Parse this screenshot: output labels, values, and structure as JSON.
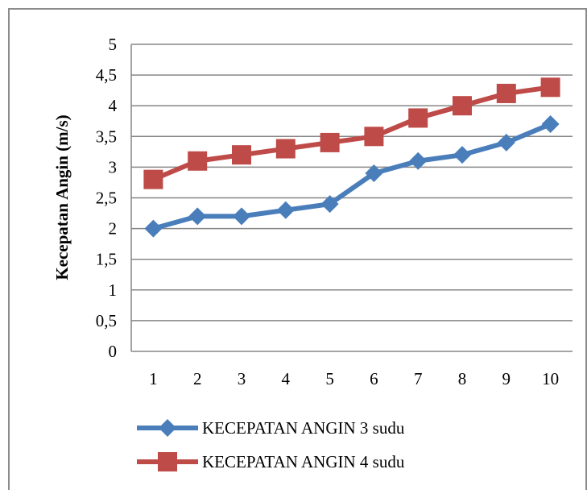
{
  "chart_data": {
    "type": "line",
    "categories": [
      "1",
      "2",
      "3",
      "4",
      "5",
      "6",
      "7",
      "8",
      "9",
      "10"
    ],
    "series": [
      {
        "name": "KECEPATAN ANGIN 3 sudu",
        "values": [
          2.0,
          2.2,
          2.2,
          2.3,
          2.4,
          2.9,
          3.1,
          3.2,
          3.4,
          3.7
        ],
        "color": "#4a7ebb",
        "marker": "diamond"
      },
      {
        "name": "KECEPATAN ANGIN 4 sudu",
        "values": [
          2.8,
          3.1,
          3.2,
          3.3,
          3.4,
          3.5,
          3.8,
          4.0,
          4.2,
          4.3
        ],
        "color": "#be4b48",
        "marker": "square"
      }
    ],
    "ylabel": "Kecepatan Angin (m/s)",
    "ylim": [
      0,
      5
    ],
    "yticks": [
      "0",
      "0,5",
      "1",
      "1,5",
      "2",
      "2,5",
      "3",
      "3,5",
      "4",
      "4,5",
      "5"
    ],
    "grid": true,
    "legend_position": "bottom"
  }
}
